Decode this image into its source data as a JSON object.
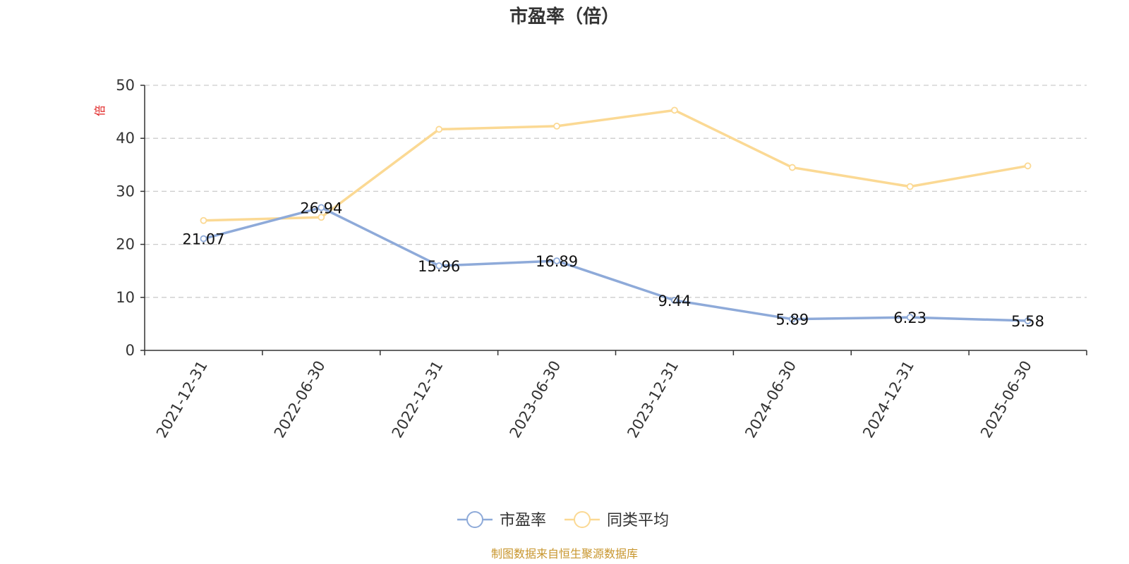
{
  "chart_data": {
    "type": "line",
    "title": "市盈率（倍）",
    "ylabel": "倍",
    "xlabel": "",
    "categories": [
      "2021-12-31",
      "2022-06-30",
      "2022-12-31",
      "2023-06-30",
      "2023-12-31",
      "2024-06-30",
      "2024-12-31",
      "2025-06-30"
    ],
    "ylim": [
      0,
      50
    ],
    "yticks": [
      "0",
      "10",
      "20",
      "30",
      "40",
      "50"
    ],
    "grid": true,
    "legend_position": "bottom",
    "series": [
      {
        "name": "市盈率",
        "color": "#8eaad9",
        "values": [
          21.07,
          26.94,
          15.96,
          16.89,
          9.44,
          5.89,
          6.23,
          5.58
        ],
        "labels": [
          "21.07",
          "26.94",
          "15.96",
          "16.89",
          "9.44",
          "5.89",
          "6.23",
          "5.58"
        ]
      },
      {
        "name": "同类平均",
        "color": "#fbd994",
        "values": [
          24.5,
          25.1,
          41.7,
          42.3,
          45.3,
          34.5,
          30.9,
          34.8
        ]
      }
    ]
  },
  "colors": {
    "axis": "#333333",
    "grid": "#cccccc",
    "unit": "#e02020",
    "source": "#c8962e"
  },
  "source": "制图数据来自恒生聚源数据库"
}
